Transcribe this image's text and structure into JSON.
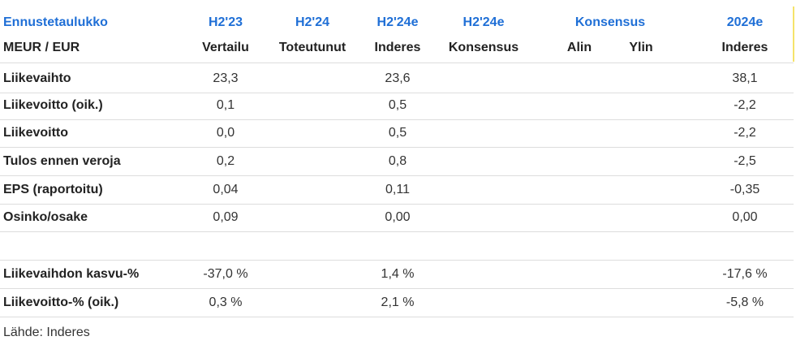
{
  "table": {
    "header": [
      [
        "Ennustetaulukko",
        "H2'23",
        "H2'24",
        "H2'24e",
        "H2'24e",
        "Konsensus",
        "2024e"
      ],
      [
        "MEUR / EUR",
        "Vertailu",
        "Toteutunut",
        "Inderes",
        "Konsensus",
        "Alin",
        "Ylin",
        "Inderes"
      ]
    ],
    "rows": [
      {
        "label": "Liikevaihto",
        "values": [
          "23,3",
          "23,6",
          "38,1"
        ]
      },
      {
        "label": "Liikevoitto (oik.)",
        "values": [
          "0,1",
          "0,5",
          "-2,2"
        ]
      },
      {
        "label": "Liikevoitto",
        "values": [
          "0,0",
          "0,5",
          "-2,2"
        ]
      },
      {
        "label": "Tulos ennen veroja",
        "values": [
          "0,2",
          "0,8",
          "-2,5"
        ]
      },
      {
        "label": "EPS (raportoitu)",
        "values": [
          "0,04",
          "0,11",
          "-0,35"
        ]
      },
      {
        "label": "Osinko/osake",
        "values": [
          "0,09",
          "0,00",
          "0,00"
        ]
      },
      {
        "label": "Liikevaihdon kasvu-%",
        "values": [
          "-37,0 %",
          "1,4 %",
          "-17,6 %"
        ]
      },
      {
        "label": "Liikevoitto-% (oik.)",
        "values": [
          "0,3 %",
          "2,1 %",
          "-5,8 %"
        ]
      }
    ],
    "source": "Lähde: Inderes"
  }
}
